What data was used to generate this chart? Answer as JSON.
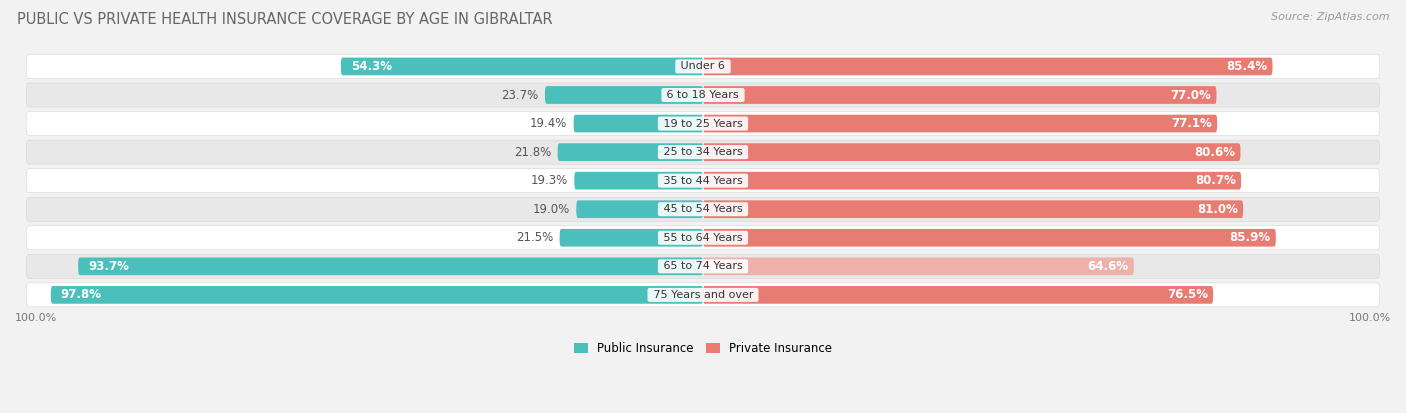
{
  "title": "PUBLIC VS PRIVATE HEALTH INSURANCE COVERAGE BY AGE IN GIBRALTAR",
  "source": "Source: ZipAtlas.com",
  "categories": [
    "Under 6",
    "6 to 18 Years",
    "19 to 25 Years",
    "25 to 34 Years",
    "35 to 44 Years",
    "45 to 54 Years",
    "55 to 64 Years",
    "65 to 74 Years",
    "75 Years and over"
  ],
  "public_values": [
    54.3,
    23.7,
    19.4,
    21.8,
    19.3,
    19.0,
    21.5,
    93.7,
    97.8
  ],
  "private_values": [
    85.4,
    77.0,
    77.1,
    80.6,
    80.7,
    81.0,
    85.9,
    64.6,
    76.5
  ],
  "public_color": "#4bbfbb",
  "private_color": "#e87b72",
  "private_color_light": "#f0b0aa",
  "background_color": "#f2f2f2",
  "row_bg_even": "#ffffff",
  "row_bg_odd": "#e8e8e8",
  "bar_height": 0.62,
  "legend_public": "Public Insurance",
  "legend_private": "Private Insurance",
  "label_fontsize": 8.5,
  "title_fontsize": 10.5,
  "source_fontsize": 8
}
